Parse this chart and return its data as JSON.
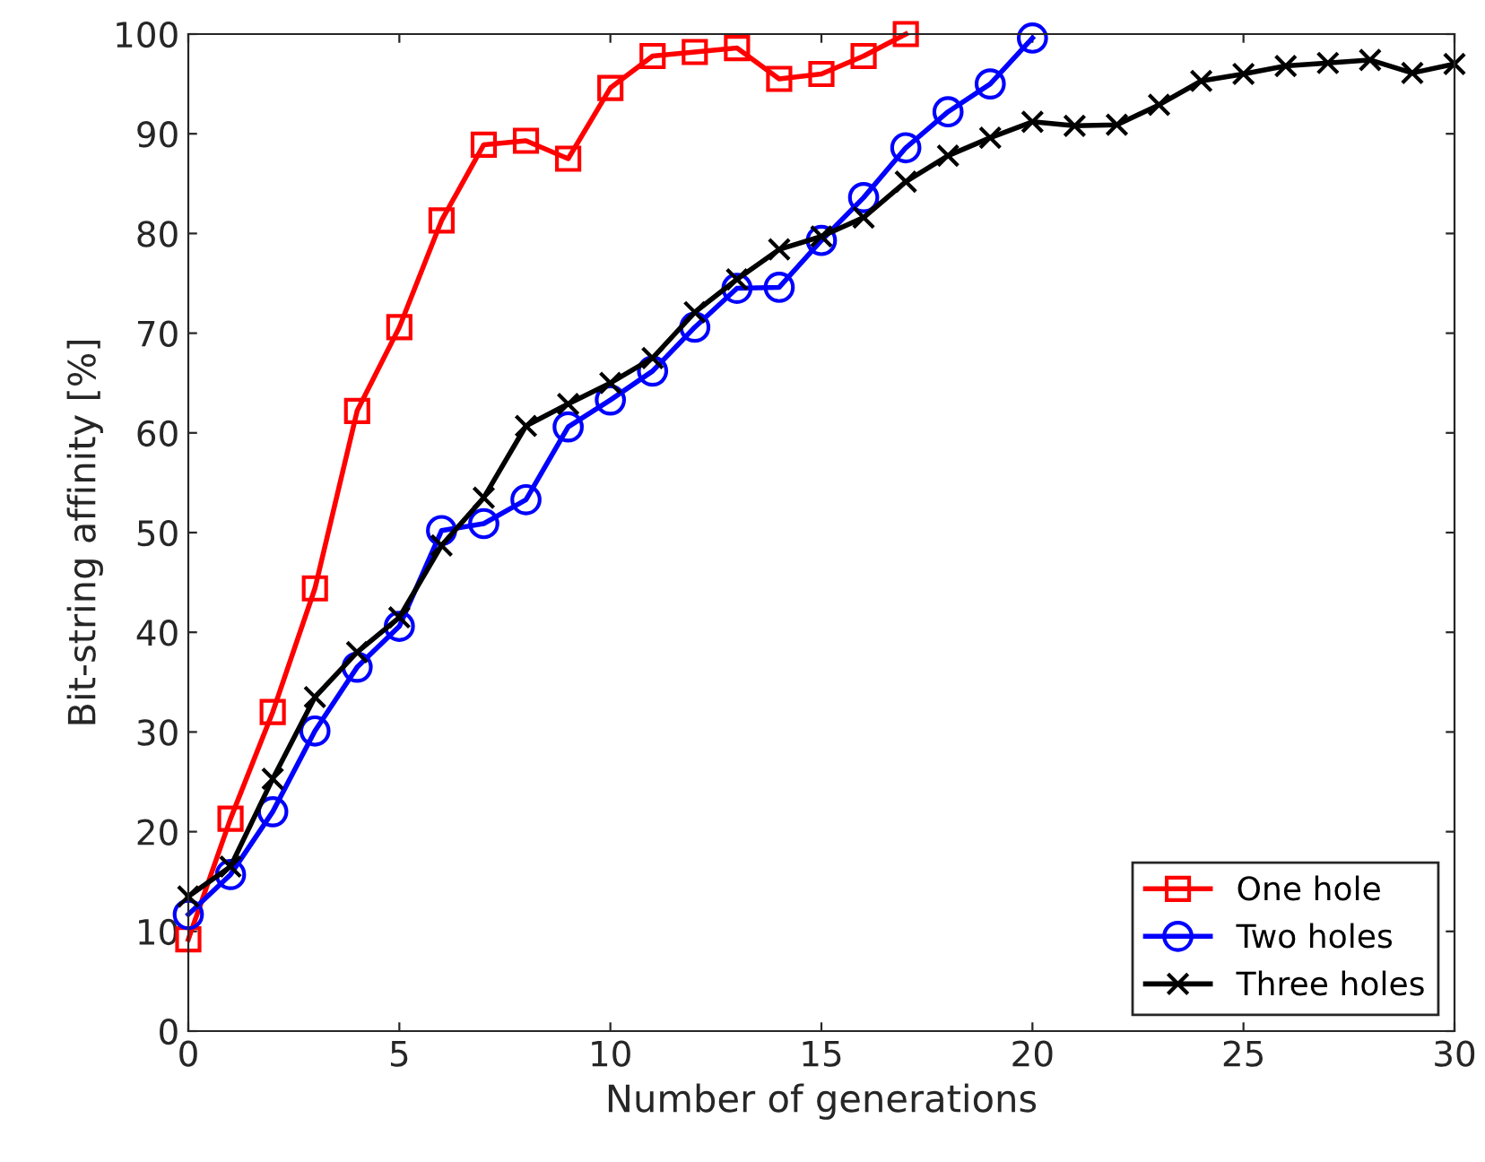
{
  "chart_data": {
    "type": "line",
    "xlabel": "Number of generations",
    "ylabel": "Bit-string affinity [%]",
    "xlim": [
      0,
      30
    ],
    "xticks": [
      0,
      5,
      10,
      15,
      20,
      25,
      30
    ],
    "ylim": [
      0,
      100
    ],
    "yticks": [
      0,
      10,
      20,
      30,
      40,
      50,
      60,
      70,
      80,
      90,
      100
    ],
    "grid": false,
    "legend": "bottom right",
    "series": [
      {
        "name": "One hole",
        "color": "#ff0000",
        "marker": "square",
        "x": [
          0,
          1,
          2,
          3,
          4,
          5,
          6,
          7,
          8,
          9,
          10,
          11,
          12,
          13,
          14,
          15,
          16,
          17
        ],
        "values": [
          9.2,
          21.3,
          32,
          44.4,
          62.2,
          70.6,
          81.3,
          88.9,
          89.3,
          87.5,
          94.6,
          97.8,
          98.2,
          98.6,
          95.5,
          96,
          97.8,
          100
        ]
      },
      {
        "name": "Two holes",
        "color": "#0000ff",
        "marker": "circle",
        "x": [
          0,
          1,
          2,
          3,
          4,
          5,
          6,
          7,
          8,
          9,
          10,
          11,
          12,
          13,
          14,
          15,
          16,
          17,
          18,
          19,
          20
        ],
        "values": [
          11.7,
          15.7,
          22,
          30.1,
          36.5,
          40.6,
          50.2,
          50.9,
          53.3,
          60.6,
          63.3,
          66.2,
          70.6,
          74.5,
          74.6,
          79.3,
          83.6,
          88.6,
          92.2,
          95,
          99.6
        ]
      },
      {
        "name": "Three holes",
        "color": "#000000",
        "marker": "cross",
        "x": [
          0,
          1,
          2,
          3,
          4,
          5,
          6,
          7,
          8,
          9,
          10,
          11,
          12,
          13,
          14,
          15,
          16,
          17,
          18,
          19,
          20,
          21,
          22,
          23,
          24,
          25,
          26,
          27,
          28,
          29,
          30
        ],
        "values": [
          13.5,
          16.5,
          25.3,
          33.5,
          38,
          41.5,
          48.7,
          53.5,
          60.7,
          62.9,
          65,
          67.5,
          72.1,
          75.4,
          78.4,
          79.7,
          81.6,
          85.2,
          87.8,
          89.6,
          91.2,
          90.8,
          90.9,
          92.9,
          95.3,
          96,
          96.8,
          97.1,
          97.4,
          96.1,
          97
        ]
      }
    ]
  }
}
